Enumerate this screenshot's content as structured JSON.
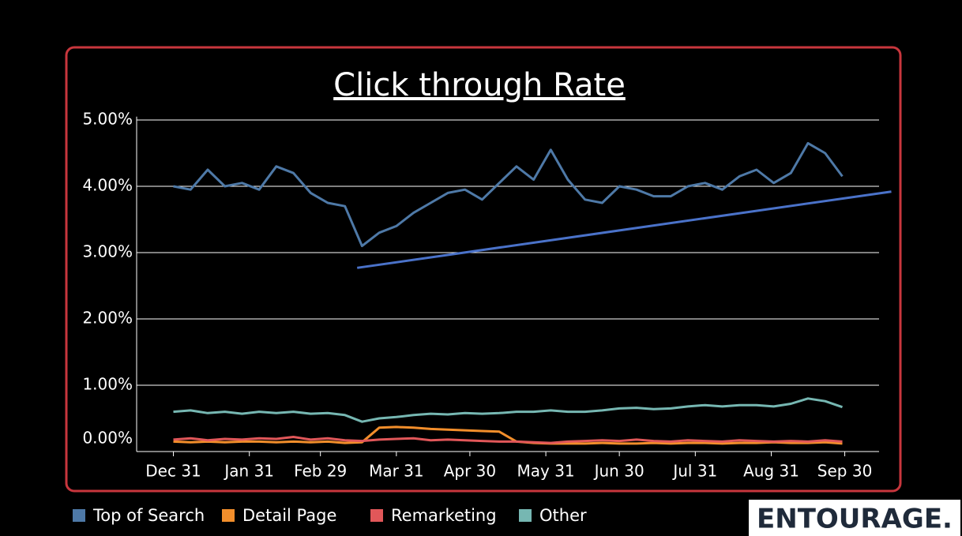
{
  "chart_data": {
    "type": "line",
    "title": "Click through Rate",
    "x": [
      0,
      7,
      14,
      21,
      28,
      35,
      42,
      49,
      56,
      63,
      70,
      77,
      84,
      91,
      98,
      105,
      112,
      119,
      126,
      133,
      140,
      147,
      154,
      161,
      168,
      175,
      182,
      189,
      196,
      203,
      210,
      217,
      224,
      231,
      238,
      245,
      252,
      259,
      266,
      273
    ],
    "xlim": [
      -15,
      288
    ],
    "xticks": [
      {
        "value": 0,
        "label": "Dec 31"
      },
      {
        "value": 31,
        "label": "Jan 31"
      },
      {
        "value": 60,
        "label": "Feb 29"
      },
      {
        "value": 91,
        "label": "Mar 31"
      },
      {
        "value": 121,
        "label": "Apr 30"
      },
      {
        "value": 152,
        "label": "May 31"
      },
      {
        "value": 182,
        "label": "Jun 30"
      },
      {
        "value": 213,
        "label": "Jul 31"
      },
      {
        "value": 244,
        "label": "Aug 31"
      },
      {
        "value": 274,
        "label": "Sep 30"
      }
    ],
    "ylim": [
      0,
      5.05
    ],
    "yticks": [
      {
        "value": 0,
        "label": "0.00%"
      },
      {
        "value": 1,
        "label": "1.00%"
      },
      {
        "value": 2,
        "label": "2.00%"
      },
      {
        "value": 3,
        "label": "3.00%"
      },
      {
        "value": 4,
        "label": "4.00%"
      },
      {
        "value": 5,
        "label": "5.00%"
      }
    ],
    "grid": true,
    "series": [
      {
        "name": "Top of Search",
        "color": "#4e79a7",
        "values": [
          4.0,
          3.95,
          4.25,
          4.0,
          4.05,
          3.95,
          4.3,
          4.2,
          3.9,
          3.75,
          3.7,
          3.1,
          3.3,
          3.4,
          3.6,
          3.75,
          3.9,
          3.95,
          3.8,
          4.05,
          4.3,
          4.1,
          4.55,
          4.1,
          3.8,
          3.75,
          4.0,
          3.95,
          3.85,
          3.85,
          4.0,
          4.05,
          3.95,
          4.15,
          4.25,
          4.05,
          4.2,
          4.65,
          4.5,
          4.15
        ]
      },
      {
        "name": "Detail Page",
        "color": "#f28e2b",
        "values": [
          0.15,
          0.14,
          0.15,
          0.14,
          0.15,
          0.15,
          0.14,
          0.15,
          0.14,
          0.15,
          0.13,
          0.14,
          0.36,
          0.37,
          0.36,
          0.34,
          0.33,
          0.32,
          0.31,
          0.3,
          0.15,
          0.13,
          0.12,
          0.12,
          0.12,
          0.13,
          0.12,
          0.12,
          0.13,
          0.12,
          0.13,
          0.13,
          0.12,
          0.13,
          0.13,
          0.14,
          0.13,
          0.13,
          0.14,
          0.12
        ]
      },
      {
        "name": "Remarketing",
        "color": "#e15759",
        "values": [
          0.18,
          0.2,
          0.17,
          0.19,
          0.18,
          0.2,
          0.19,
          0.22,
          0.18,
          0.2,
          0.17,
          0.16,
          0.18,
          0.19,
          0.2,
          0.17,
          0.18,
          0.17,
          0.16,
          0.15,
          0.15,
          0.14,
          0.13,
          0.15,
          0.16,
          0.17,
          0.16,
          0.18,
          0.16,
          0.15,
          0.17,
          0.16,
          0.15,
          0.17,
          0.16,
          0.15,
          0.16,
          0.15,
          0.17,
          0.15
        ]
      },
      {
        "name": "Other",
        "color": "#76b7b2",
        "values": [
          0.6,
          0.62,
          0.58,
          0.6,
          0.57,
          0.6,
          0.58,
          0.6,
          0.57,
          0.58,
          0.55,
          0.45,
          0.5,
          0.52,
          0.55,
          0.57,
          0.56,
          0.58,
          0.57,
          0.58,
          0.6,
          0.6,
          0.62,
          0.6,
          0.6,
          0.62,
          0.65,
          0.66,
          0.64,
          0.65,
          0.68,
          0.7,
          0.68,
          0.7,
          0.7,
          0.68,
          0.72,
          0.8,
          0.76,
          0.67
        ]
      }
    ],
    "trendline": {
      "x": [
        75,
        293
      ],
      "values": [
        2.77,
        3.92
      ],
      "color": "#4a72c9"
    },
    "logo": "ENTOURAGE."
  }
}
